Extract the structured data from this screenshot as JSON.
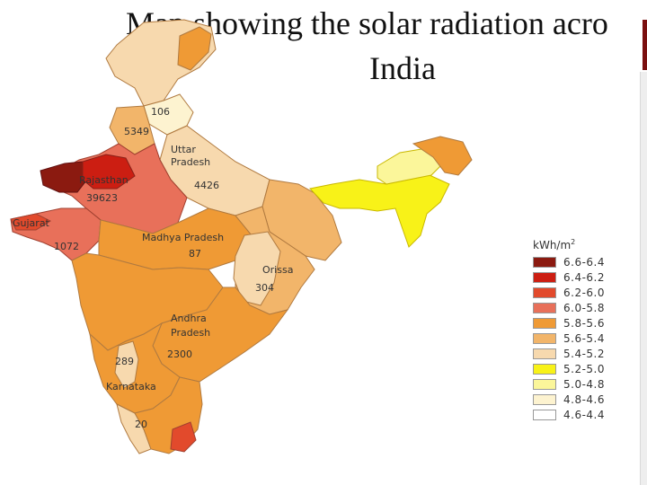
{
  "title": {
    "line1": "Map showing the solar radiation acro",
    "line2": "India"
  },
  "legend": {
    "unit": "kWh/m",
    "unit_sup": "2",
    "items": [
      {
        "label": "6.6-6.4",
        "color": "#8b1a10"
      },
      {
        "label": "6.4-6.2",
        "color": "#cc1e12"
      },
      {
        "label": "6.2-6.0",
        "color": "#e24a2c"
      },
      {
        "label": "6.0-5.8",
        "color": "#e8705a"
      },
      {
        "label": "5.8-5.6",
        "color": "#ef9a35"
      },
      {
        "label": "5.6-5.4",
        "color": "#f2b56a"
      },
      {
        "label": "5.4-5.2",
        "color": "#f7d9ae"
      },
      {
        "label": "5.2-5.0",
        "color": "#f8f218"
      },
      {
        "label": "5.0-4.8",
        "color": "#fbf69a"
      },
      {
        "label": "4.8-4.6",
        "color": "#fdf3d0"
      },
      {
        "label": "4.6-4.4",
        "color": "#ffffff"
      }
    ]
  },
  "map_labels": {
    "n106": "106",
    "n5349": "5349",
    "uttar1": "Uttar",
    "uttar2": "Pradesh",
    "n4426": "4426",
    "rajasthan": "Rajasthan",
    "n39623": "39623",
    "gujarat": "Gujarat",
    "n1072": "1072",
    "madhya": "Madhya Pradesh",
    "n87": "87",
    "orissa": "Orissa",
    "n304": "304",
    "andhra1": "Andhra",
    "andhra2": "Pradesh",
    "n2300": "2300",
    "n289": "289",
    "karnataka": "Karnataka",
    "n20": "20"
  }
}
